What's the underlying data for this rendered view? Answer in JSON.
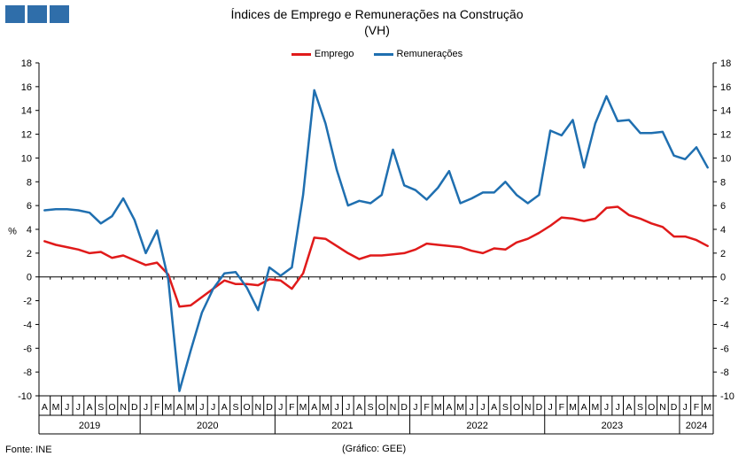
{
  "header": {
    "title_line1": "Índices de Emprego e Remunerações na Construção",
    "title_line2": "(VH)"
  },
  "footer": {
    "source": "Fonte: INE",
    "credit": "(Gráfico: GEE)"
  },
  "chart_data": {
    "type": "line",
    "yunit": "%",
    "ylim": [
      -10,
      18
    ],
    "yticks": [
      -10,
      -8,
      -6,
      -4,
      -2,
      0,
      2,
      4,
      6,
      8,
      10,
      12,
      14,
      16,
      18
    ],
    "grid": false,
    "legend_position": "top-center",
    "x": [
      "A",
      "M",
      "J",
      "J",
      "A",
      "S",
      "O",
      "N",
      "D",
      "J",
      "F",
      "M",
      "A",
      "M",
      "J",
      "J",
      "A",
      "S",
      "O",
      "N",
      "D",
      "J",
      "F",
      "M",
      "A",
      "M",
      "J",
      "J",
      "A",
      "S",
      "O",
      "N",
      "D",
      "J",
      "F",
      "M",
      "A",
      "M",
      "J",
      "J",
      "A",
      "S",
      "O",
      "N",
      "D",
      "J",
      "F",
      "M",
      "A",
      "M",
      "J",
      "J",
      "A",
      "S",
      "O",
      "N",
      "D",
      "J",
      "F",
      "M"
    ],
    "years": [
      {
        "label": "2019",
        "start": 0,
        "count": 9
      },
      {
        "label": "2020",
        "start": 9,
        "count": 12
      },
      {
        "label": "2021",
        "start": 21,
        "count": 12
      },
      {
        "label": "2022",
        "start": 33,
        "count": 12
      },
      {
        "label": "2023",
        "start": 45,
        "count": 12
      },
      {
        "label": "2024",
        "start": 57,
        "count": 3
      }
    ],
    "series": [
      {
        "name": "Emprego",
        "color": "#e01a1a",
        "values": [
          3.0,
          2.7,
          2.5,
          2.3,
          2.0,
          2.1,
          1.6,
          1.8,
          1.4,
          1.0,
          1.2,
          0.2,
          -2.5,
          -2.4,
          -1.7,
          -1.0,
          -0.3,
          -0.6,
          -0.6,
          -0.7,
          -0.2,
          -0.3,
          -1.0,
          0.3,
          3.3,
          3.2,
          2.6,
          2.0,
          1.5,
          1.8,
          1.8,
          1.9,
          2.0,
          2.3,
          2.8,
          2.7,
          2.6,
          2.5,
          2.2,
          2.0,
          2.4,
          2.3,
          2.9,
          3.2,
          3.7,
          4.3,
          5.0,
          4.9,
          4.7,
          4.9,
          5.8,
          5.9,
          5.2,
          4.9,
          4.5,
          4.2,
          3.4,
          3.4,
          3.1,
          2.6
        ]
      },
      {
        "name": "Remunerações",
        "color": "#1f6fb0",
        "values": [
          5.6,
          5.7,
          5.7,
          5.6,
          5.4,
          4.5,
          5.1,
          6.6,
          4.8,
          2.0,
          3.9,
          -0.2,
          -9.6,
          -6.2,
          -3.0,
          -1.0,
          0.3,
          0.4,
          -0.9,
          -2.8,
          0.8,
          0.1,
          0.8,
          6.9,
          15.7,
          12.9,
          9.0,
          6.0,
          6.4,
          6.2,
          6.9,
          10.7,
          7.7,
          7.3,
          6.5,
          7.5,
          8.9,
          6.2,
          6.6,
          7.1,
          7.1,
          8.0,
          6.9,
          6.2,
          6.9,
          12.3,
          11.9,
          13.2,
          9.2,
          12.9,
          15.2,
          13.1,
          13.2,
          12.1,
          12.1,
          12.2,
          10.2,
          9.9,
          10.9,
          9.2
        ]
      }
    ]
  }
}
